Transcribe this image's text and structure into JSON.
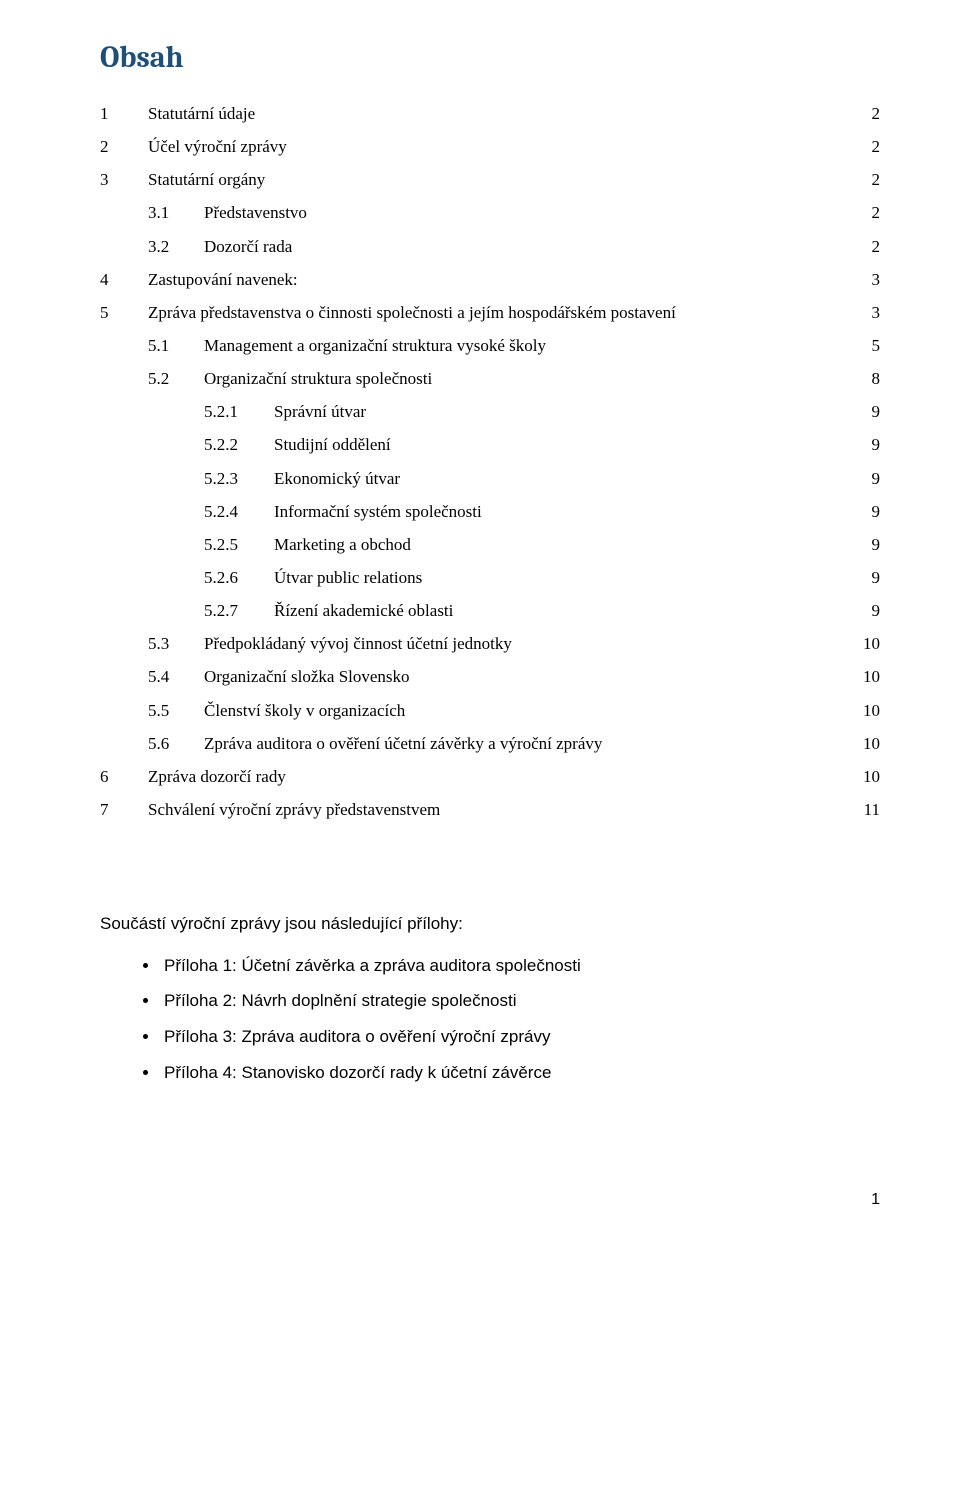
{
  "title": "Obsah",
  "title_color": "#1f4e79",
  "text_color": "#000000",
  "background_color": "#ffffff",
  "page_number": "1",
  "toc": [
    {
      "level": 1,
      "num": "1",
      "title": "Statutární údaje",
      "page": "2"
    },
    {
      "level": 1,
      "num": "2",
      "title": "Účel výroční zprávy",
      "page": "2"
    },
    {
      "level": 1,
      "num": "3",
      "title": "Statutární orgány",
      "page": "2"
    },
    {
      "level": 2,
      "num": "3.1",
      "title": "Představenstvo",
      "page": "2"
    },
    {
      "level": 2,
      "num": "3.2",
      "title": "Dozorčí rada",
      "page": "2"
    },
    {
      "level": 1,
      "num": "4",
      "title": "Zastupování navenek:",
      "page": "3"
    },
    {
      "level": 1,
      "num": "5",
      "title": "Zpráva představenstva o činnosti společnosti a jejím hospodářském postavení",
      "page": "3"
    },
    {
      "level": 2,
      "num": "5.1",
      "title": "Management a organizační struktura vysoké školy",
      "page": "5"
    },
    {
      "level": 2,
      "num": "5.2",
      "title": "Organizační struktura společnosti",
      "page": "8"
    },
    {
      "level": 3,
      "num": "5.2.1",
      "title": "Správní útvar",
      "page": "9"
    },
    {
      "level": 3,
      "num": "5.2.2",
      "title": "Studijní oddělení",
      "page": "9"
    },
    {
      "level": 3,
      "num": "5.2.3",
      "title": "Ekonomický útvar",
      "page": "9"
    },
    {
      "level": 3,
      "num": "5.2.4",
      "title": "Informační systém společnosti",
      "page": "9"
    },
    {
      "level": 3,
      "num": "5.2.5",
      "title": "Marketing a obchod",
      "page": "9"
    },
    {
      "level": 3,
      "num": "5.2.6",
      "title": "Útvar public relations",
      "page": "9"
    },
    {
      "level": 3,
      "num": "5.2.7",
      "title": "Řízení akademické oblasti",
      "page": "9"
    },
    {
      "level": 2,
      "num": "5.3",
      "title": "Předpokládaný vývoj činnost účetní jednotky",
      "page": "10"
    },
    {
      "level": 2,
      "num": "5.4",
      "title": "Organizační složka Slovensko",
      "page": "10"
    },
    {
      "level": 2,
      "num": "5.5",
      "title": "Členství školy v organizacích",
      "page": "10"
    },
    {
      "level": 2,
      "num": "5.6",
      "title": "Zpráva auditora o ověření účetní závěrky a výroční zprávy",
      "page": "10"
    },
    {
      "level": 1,
      "num": "6",
      "title": "Zpráva dozorčí rady",
      "page": "10"
    },
    {
      "level": 1,
      "num": "7",
      "title": "Schválení výroční zprávy představenstvem",
      "page": "11"
    }
  ],
  "attachments_intro": "Součástí výroční zprávy jsou následující přílohy:",
  "attachments": [
    "Příloha 1: Účetní závěrka a zpráva auditora společnosti",
    "Příloha 2: Návrh doplnění strategie společnosti",
    "Příloha 3: Zpráva auditora o ověření výroční zprávy",
    "Příloha 4: Stanovisko dozorčí rady k účetní závěrce"
  ]
}
